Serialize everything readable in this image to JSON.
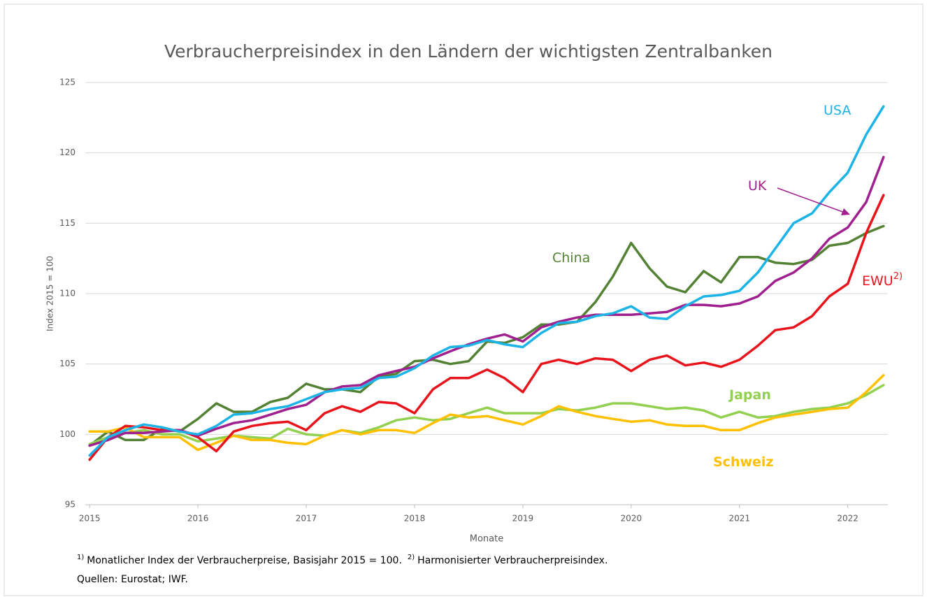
{
  "chart_data": {
    "type": "line",
    "title": "Verbraucherpreisindex in den Ländern der wichtigsten Zentralbanken",
    "x_label": "Monate",
    "y_label": "Index 2015 = 100",
    "x": [
      2015,
      2015.17,
      2015.33,
      2015.5,
      2015.67,
      2015.83,
      2016,
      2016.17,
      2016.33,
      2016.5,
      2016.67,
      2016.83,
      2017,
      2017.17,
      2017.33,
      2017.5,
      2017.67,
      2017.83,
      2018,
      2018.17,
      2018.33,
      2018.5,
      2018.67,
      2018.83,
      2019,
      2019.17,
      2019.33,
      2019.5,
      2019.67,
      2019.83,
      2020,
      2020.17,
      2020.33,
      2020.5,
      2020.67,
      2020.83,
      2021,
      2021.17,
      2021.33,
      2021.5,
      2021.67,
      2021.83,
      2022,
      2022.17,
      2022.33
    ],
    "xlim": [
      2014.96,
      2022.37
    ],
    "xticks": [
      2015,
      2016,
      2017,
      2018,
      2019,
      2020,
      2021,
      2022
    ],
    "ylim": [
      95,
      125
    ],
    "yticks": [
      95,
      100,
      105,
      110,
      115,
      120,
      125
    ],
    "grid": true,
    "series": [
      {
        "name": "China",
        "color": "#548235",
        "values": [
          99.2,
          100.2,
          99.6,
          99.6,
          100.4,
          100.2,
          101.1,
          102.2,
          101.6,
          101.6,
          102.3,
          102.6,
          103.6,
          103.2,
          103.2,
          103.0,
          104.1,
          104.3,
          105.2,
          105.3,
          105.0,
          105.2,
          106.6,
          106.5,
          106.9,
          107.8,
          107.8,
          108.0,
          109.4,
          111.2,
          113.6,
          111.8,
          110.5,
          110.1,
          111.6,
          110.8,
          112.6,
          112.6,
          112.2,
          112.1,
          112.4,
          113.4,
          113.6,
          114.3,
          114.8
        ]
      },
      {
        "name": "Japan",
        "color": "#92d050",
        "values": [
          99.3,
          99.8,
          100.1,
          100.3,
          100.0,
          100.0,
          99.5,
          99.7,
          99.9,
          99.8,
          99.7,
          100.4,
          100.0,
          99.9,
          100.3,
          100.1,
          100.5,
          101.0,
          101.2,
          101.0,
          101.1,
          101.5,
          101.9,
          101.5,
          101.5,
          101.5,
          101.8,
          101.7,
          101.9,
          102.2,
          102.2,
          102.0,
          101.8,
          101.9,
          101.7,
          101.2,
          101.6,
          101.2,
          101.3,
          101.6,
          101.8,
          101.9,
          102.2,
          102.8,
          103.5
        ]
      },
      {
        "name": "Schweiz",
        "color": "#ffc000",
        "values": [
          100.2,
          100.2,
          100.5,
          99.8,
          99.8,
          99.8,
          98.9,
          99.4,
          99.9,
          99.6,
          99.6,
          99.4,
          99.3,
          99.9,
          100.3,
          100.0,
          100.3,
          100.3,
          100.1,
          100.8,
          101.4,
          101.2,
          101.3,
          101.0,
          100.7,
          101.3,
          102.0,
          101.6,
          101.3,
          101.1,
          100.9,
          101.0,
          100.7,
          100.6,
          100.6,
          100.3,
          100.3,
          100.8,
          101.2,
          101.4,
          101.6,
          101.8,
          101.9,
          103.0,
          104.2
        ]
      },
      {
        "name": "EWU",
        "superscript": "2)",
        "color": "#e8141c",
        "values": [
          98.2,
          99.8,
          100.6,
          100.5,
          100.3,
          100.3,
          99.8,
          98.8,
          100.2,
          100.6,
          100.8,
          100.9,
          100.3,
          101.5,
          102.0,
          101.6,
          102.3,
          102.2,
          101.5,
          103.2,
          104.0,
          104.0,
          104.6,
          104.0,
          103.0,
          105.0,
          105.3,
          105.0,
          105.4,
          105.3,
          104.5,
          105.3,
          105.6,
          104.9,
          105.1,
          104.8,
          105.3,
          106.3,
          107.4,
          107.6,
          108.4,
          109.8,
          110.7,
          114.3,
          117.0
        ]
      },
      {
        "name": "UK",
        "color": "#a0208f",
        "values": [
          99.2,
          99.6,
          100.1,
          100.1,
          100.2,
          100.3,
          99.9,
          100.4,
          100.8,
          101.0,
          101.4,
          101.8,
          102.1,
          103.0,
          103.4,
          103.5,
          104.2,
          104.5,
          104.8,
          105.4,
          105.9,
          106.4,
          106.8,
          107.1,
          106.6,
          107.6,
          108.0,
          108.3,
          108.5,
          108.5,
          108.5,
          108.6,
          108.7,
          109.2,
          109.2,
          109.1,
          109.3,
          109.8,
          110.9,
          111.5,
          112.5,
          113.9,
          114.7,
          116.5,
          119.7
        ]
      },
      {
        "name": "USA",
        "color": "#1cb3e6",
        "values": [
          98.5,
          99.8,
          100.3,
          100.7,
          100.5,
          100.2,
          100.0,
          100.6,
          101.4,
          101.5,
          101.8,
          102.0,
          102.5,
          103.0,
          103.2,
          103.3,
          104.0,
          104.1,
          104.7,
          105.6,
          106.2,
          106.3,
          106.7,
          106.4,
          106.2,
          107.2,
          107.9,
          108.0,
          108.4,
          108.6,
          109.1,
          108.3,
          108.2,
          109.1,
          109.8,
          109.9,
          110.2,
          111.5,
          113.2,
          115.0,
          115.7,
          117.2,
          118.6,
          121.3,
          123.3
        ]
      }
    ],
    "footnotes": [
      {
        "mark": "1)",
        "text": "Monatlicher Index der Verbraucherpreise, Basisjahr 2015 = 100."
      },
      {
        "mark": "2)",
        "text": "Harmonisierter Verbraucherpreisindex."
      }
    ],
    "source": "Quellen: Eurostat; IWF."
  }
}
